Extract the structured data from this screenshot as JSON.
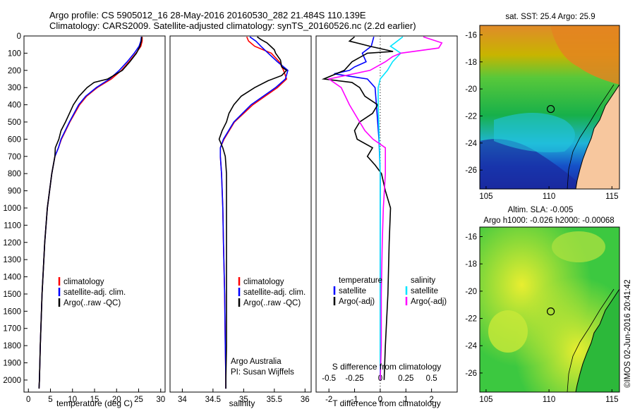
{
  "header": {
    "line1": "Argo profile: CS 5905012_16 28-May-2016 20160530_282 21.484S 110.139E",
    "line2": "Climatology: CARS2009. Satellite-adjusted climatology: synTS_20160526.nc (2.2d earlier)"
  },
  "colors": {
    "climatology": "#ff0000",
    "satellite": "#0000ff",
    "argo": "#000000",
    "sal_satellite": "#00e5ff",
    "sal_argo": "#ff00ff",
    "land": "#f7c79e"
  },
  "depth_axis": {
    "ylim": [
      0,
      2070
    ],
    "ticks": [
      "0",
      "100",
      "200",
      "300",
      "400",
      "500",
      "600",
      "700",
      "800",
      "900",
      "1000",
      "1100",
      "1200",
      "1300",
      "1400",
      "1500",
      "1600",
      "1700",
      "1800",
      "1900",
      "2000"
    ]
  },
  "chart_data": [
    {
      "type": "line",
      "xlabel": "temperature (deg C)",
      "xlim": [
        -1,
        31
      ],
      "xticks": [
        "0",
        "5",
        "10",
        "15",
        "20",
        "25",
        "30"
      ],
      "legend": [
        "climatology",
        "satellite-adj. clim.",
        "Argo(..raw -QC)"
      ],
      "series": [
        {
          "name": "climatology",
          "depth": [
            5,
            30,
            60,
            100,
            150,
            200,
            250,
            300,
            350,
            400,
            500,
            600,
            650,
            700,
            800,
            1000,
            1200,
            1500,
            1800,
            2000,
            2050
          ],
          "values": [
            25.8,
            25.8,
            25.5,
            24.4,
            22.8,
            21.1,
            18.8,
            15.6,
            13.2,
            11.6,
            9.4,
            7.5,
            6.8,
            6.0,
            5.3,
            4.3,
            3.7,
            3.1,
            2.7,
            2.5,
            2.4
          ]
        },
        {
          "name": "satellite-adj. clim.",
          "depth": [
            5,
            30,
            60,
            100,
            150,
            200,
            250,
            300,
            350,
            400,
            500,
            600,
            650,
            700,
            800,
            1000,
            1200,
            1500,
            1800,
            2000,
            2050
          ],
          "values": [
            25.6,
            25.5,
            25.1,
            24.0,
            22.4,
            20.6,
            18.4,
            15.4,
            13.0,
            11.4,
            9.3,
            7.4,
            6.8,
            6.0,
            5.3,
            4.3,
            3.7,
            3.1,
            2.7,
            2.5,
            2.4
          ]
        },
        {
          "name": "Argo(..raw -QC)",
          "depth": [
            5,
            30,
            60,
            100,
            150,
            200,
            250,
            270,
            300,
            350,
            400,
            450,
            500,
            550,
            600,
            650,
            700,
            800,
            1000,
            1200,
            1500,
            1800,
            2000,
            2050
          ],
          "values": [
            25.7,
            25.6,
            25.3,
            24.5,
            23.0,
            21.3,
            18.0,
            14.9,
            13.3,
            11.5,
            10.2,
            9.3,
            8.4,
            7.4,
            6.9,
            6.1,
            6.0,
            5.3,
            4.3,
            3.7,
            3.1,
            2.7,
            2.5,
            2.4
          ]
        }
      ]
    },
    {
      "type": "line",
      "xlabel": "salinity",
      "xlim": [
        33.8,
        36.1
      ],
      "xticks": [
        "34",
        "34.5",
        "35",
        "35.5",
        "36"
      ],
      "legend": [
        "climatology",
        "satellite-adj. clim.",
        "Argo(..raw -QC)"
      ],
      "annotation": [
        "Argo Australia",
        "PI: Susan Wijffels"
      ],
      "series": [
        {
          "name": "climatology",
          "depth": [
            5,
            30,
            60,
            100,
            150,
            200,
            250,
            300,
            350,
            400,
            500,
            600,
            650,
            700,
            800,
            1000,
            1200,
            1500,
            1800,
            2000,
            2050
          ],
          "values": [
            35.05,
            35.08,
            35.18,
            35.45,
            35.58,
            35.65,
            35.7,
            35.55,
            35.35,
            35.15,
            34.85,
            34.68,
            34.62,
            34.62,
            34.64,
            34.66,
            34.67,
            34.69,
            34.7,
            34.71,
            34.71
          ]
        },
        {
          "name": "satellite-adj. clim.",
          "depth": [
            5,
            30,
            60,
            100,
            150,
            200,
            250,
            300,
            350,
            400,
            500,
            600,
            650,
            700,
            800,
            1000,
            1200,
            1500,
            1800,
            2000,
            2050
          ],
          "values": [
            35.1,
            35.2,
            35.28,
            35.4,
            35.55,
            35.72,
            35.68,
            35.52,
            35.32,
            35.12,
            34.84,
            34.67,
            34.62,
            34.62,
            34.64,
            34.66,
            34.67,
            34.69,
            34.7,
            34.71,
            34.71
          ]
        },
        {
          "name": "Argo(..raw -QC)",
          "depth": [
            5,
            20,
            40,
            60,
            80,
            100,
            140,
            180,
            200,
            230,
            260,
            300,
            350,
            400,
            450,
            500,
            550,
            600,
            650,
            700,
            800,
            1000,
            1200,
            1500,
            1800,
            2000,
            2050
          ],
          "values": [
            35.22,
            35.28,
            35.38,
            35.44,
            35.5,
            35.52,
            35.6,
            35.62,
            35.7,
            35.62,
            35.4,
            35.18,
            34.96,
            34.84,
            34.76,
            34.72,
            34.65,
            34.6,
            34.66,
            34.7,
            34.72,
            34.72,
            34.72,
            34.72,
            34.72,
            34.71,
            34.71
          ]
        }
      ]
    },
    {
      "type": "line",
      "xlabel": "T difference from climatology",
      "xlabel_top": "S difference from climatology",
      "xlim": [
        -2.5,
        3.0
      ],
      "xticks": [
        "-2",
        "-1",
        "0",
        "1",
        "2"
      ],
      "sticks": [
        "-0.5",
        "-0.25",
        "0",
        "0.25",
        "0.5"
      ],
      "legend_groups": [
        {
          "title": "temperature",
          "items": [
            "satellite",
            "Argo(-adj)"
          ]
        },
        {
          "title": "salinity",
          "items": [
            "satellite",
            "Argo(-adj)"
          ]
        }
      ],
      "series": [
        {
          "name": "temperature satellite",
          "depth": [
            5,
            60,
            100,
            150,
            180,
            200,
            220,
            250,
            300,
            400,
            600,
            800,
            1200,
            1600,
            2000
          ],
          "values": [
            -0.25,
            -0.35,
            -0.7,
            -0.55,
            -1.0,
            -1.2,
            -1.8,
            -0.5,
            -0.2,
            -0.15,
            -0.05,
            0.0,
            0.0,
            0.0,
            0.0
          ]
        },
        {
          "name": "temperature Argo(-adj)",
          "depth": [
            5,
            30,
            60,
            90,
            100,
            150,
            200,
            250,
            270,
            300,
            350,
            400,
            450,
            500,
            550,
            600,
            650,
            700,
            750,
            800,
            900,
            1000,
            1200,
            1500,
            1800,
            2000
          ],
          "values": [
            -1.0,
            -1.2,
            -0.4,
            0.5,
            -0.5,
            -1.1,
            -1.4,
            -2.2,
            -1.1,
            -0.8,
            -0.6,
            -0.1,
            -0.3,
            -0.8,
            -1.0,
            -0.9,
            -0.3,
            -0.5,
            -0.2,
            0.05,
            0.2,
            0.4,
            0.35,
            0.3,
            0.2,
            0.15
          ]
        },
        {
          "name": "salinity satellite",
          "depth": [
            5,
            60,
            100,
            150,
            200,
            250,
            300,
            400,
            600,
            800,
            1200,
            1600,
            2000
          ],
          "values": [
            0.22,
            0.1,
            0.2,
            0.12,
            0.07,
            0.0,
            -0.02,
            -0.02,
            -0.01,
            0.0,
            0.0,
            0.0,
            0.0
          ]
        },
        {
          "name": "salinity Argo(-adj)",
          "depth": [
            5,
            40,
            70,
            100,
            120,
            150,
            200,
            250,
            300,
            400,
            500,
            550,
            600,
            650,
            700,
            800,
            1000,
            1200,
            1500,
            1800,
            2000
          ],
          "values": [
            0.42,
            0.6,
            0.57,
            0.2,
            0.12,
            0.05,
            -0.1,
            -0.5,
            -0.38,
            -0.3,
            -0.2,
            -0.15,
            -0.07,
            0.05,
            0.05,
            0.05,
            0.03,
            0.02,
            0.01,
            0.01,
            0.0
          ]
        }
      ]
    }
  ],
  "maps": [
    {
      "title": "sat. SST: 25.4 Argo: 25.9",
      "lon_ticks": [
        "105",
        "110",
        "115"
      ],
      "lat_ticks": [
        "-16",
        "-18",
        "-20",
        "-22",
        "-24",
        "-26"
      ],
      "marker": {
        "lon": 110.139,
        "lat": -21.484
      }
    },
    {
      "title_line1": "Altim. SLA: -0.005",
      "title_line2": "Argo h1000: -0.026 h2000: -0.00068",
      "lon_ticks": [
        "105",
        "110",
        "115"
      ],
      "lat_ticks": [
        "-16",
        "-18",
        "-20",
        "-22",
        "-24",
        "-26"
      ],
      "marker": {
        "lon": 110.139,
        "lat": -21.484
      }
    }
  ],
  "credit": "©IMOS 02-Jun-2016 20:41:42"
}
